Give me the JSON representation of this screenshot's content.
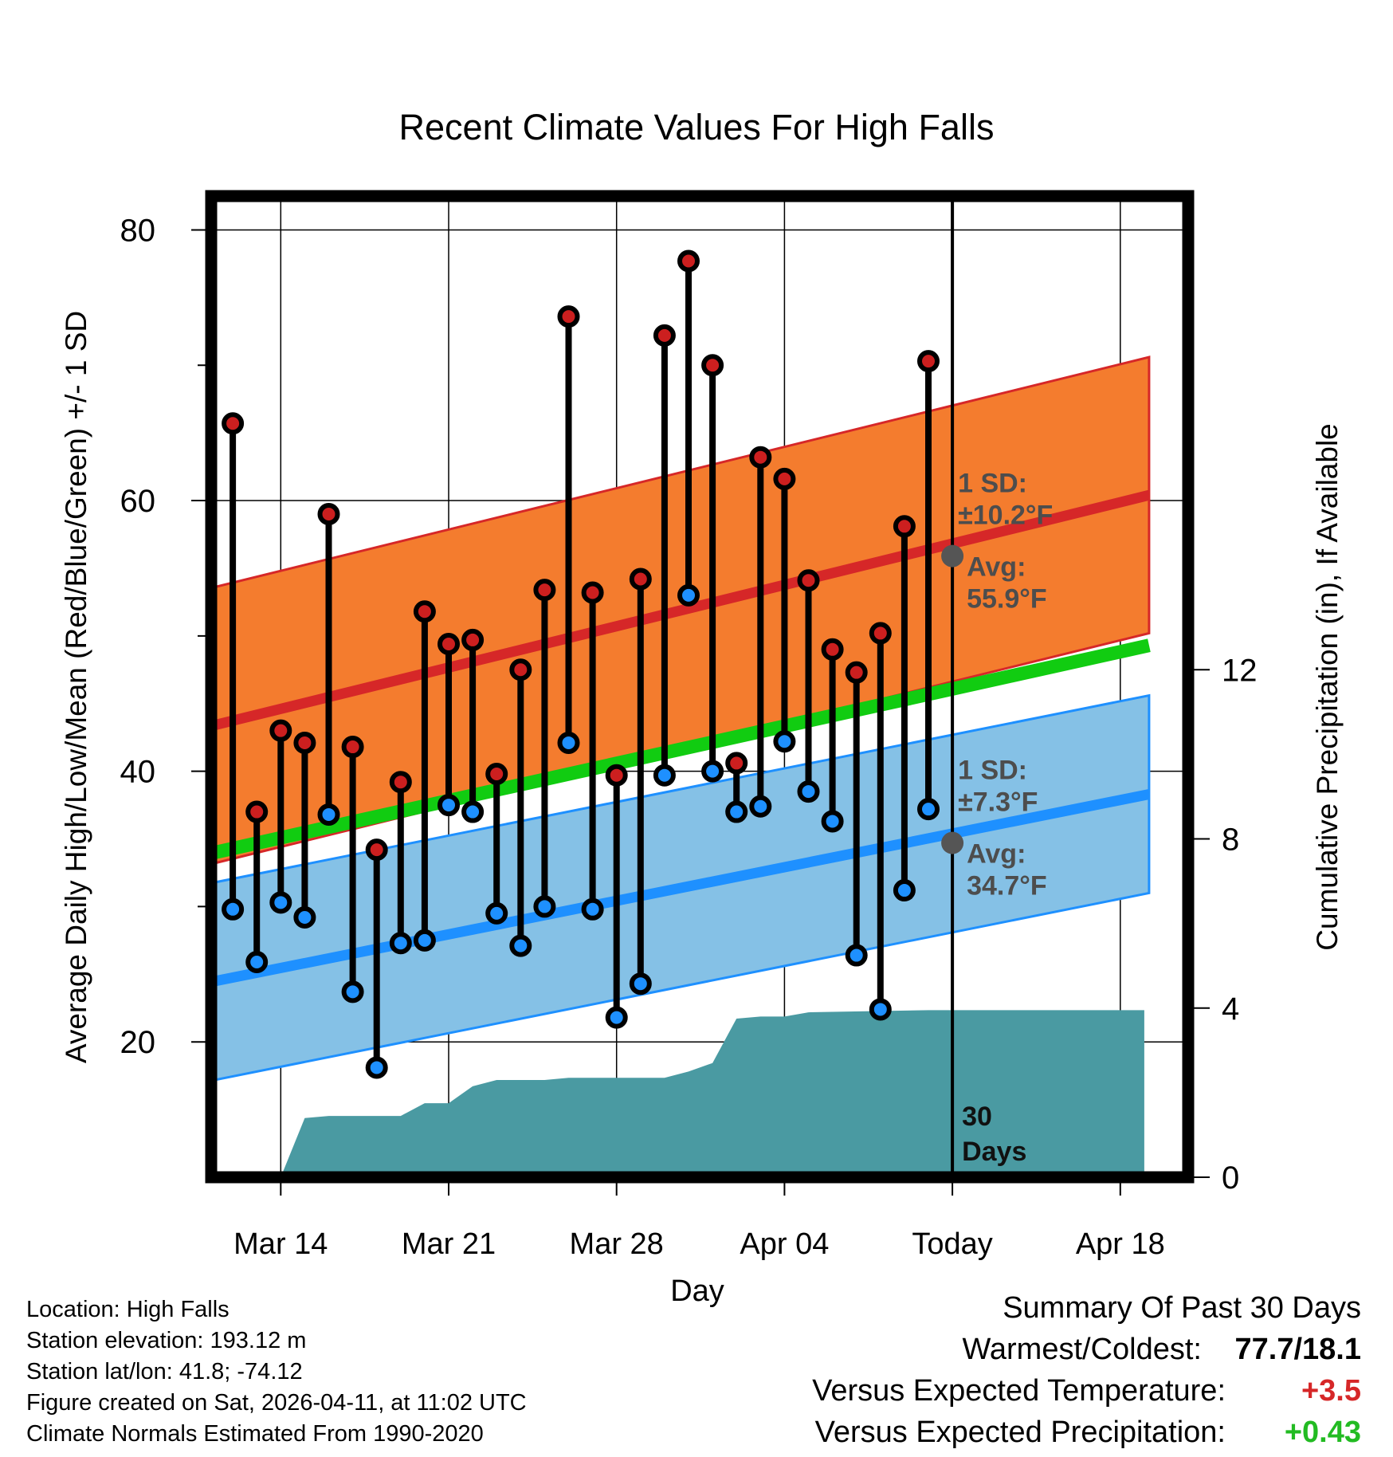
{
  "chart_data": {
    "type": "line",
    "title": "Recent Climate Values For High Falls",
    "xlabel": "Day",
    "ylabel": "Average Daily High/Low/Mean (Red/Blue/Green) +/- 1 SD",
    "ylabel_right": "Cumulative Precipitation (in), If Available",
    "ylim": [
      10,
      82.5
    ],
    "ylim_right": [
      0,
      23.2
    ],
    "y_ticks": [
      20,
      40,
      60,
      80
    ],
    "y_ticks_right": [
      0,
      4,
      8,
      12
    ],
    "x_ticks": [
      {
        "day": 3,
        "label": "Mar 14"
      },
      {
        "day": 10,
        "label": "Mar 21"
      },
      {
        "day": 17,
        "label": "Mar 28"
      },
      {
        "day": 24,
        "label": "Apr 04"
      },
      {
        "day": 31,
        "label": "Today"
      },
      {
        "day": 38,
        "label": "Apr 18"
      }
    ],
    "today_day": 31,
    "today_label_line1": "30",
    "today_label_line2": "Days",
    "normal_high": {
      "start": 43.3,
      "end": 60.4,
      "sd": 10.2
    },
    "normal_low": {
      "start": 24.4,
      "end": 38.3,
      "sd": 7.3
    },
    "normal_mean": {
      "start": 33.9,
      "end": 49.3
    },
    "high_annotation": {
      "sd_label": "1 SD:",
      "sd_value": "±10.2°F",
      "avg_label": "Avg:",
      "avg_value": "55.9°F",
      "avg": 55.9
    },
    "low_annotation": {
      "sd_label": "1 SD:",
      "sd_value": "±7.3°F",
      "avg_label": "Avg:",
      "avg_value": "34.7°F",
      "avg": 34.7
    },
    "series": [
      {
        "name": "Daily High",
        "color": "#cc1f1f",
        "values": [
          65.7,
          37.0,
          43.0,
          42.1,
          59.0,
          41.8,
          34.2,
          39.2,
          51.8,
          49.4,
          49.7,
          39.8,
          47.5,
          53.4,
          73.6,
          53.2,
          39.7,
          54.2,
          72.2,
          77.7,
          70.0,
          40.6,
          63.2,
          61.6,
          54.1,
          49.0,
          47.3,
          50.2,
          58.1,
          70.3
        ]
      },
      {
        "name": "Daily Low",
        "color": "#1e90ff",
        "values": [
          29.8,
          25.9,
          30.3,
          29.2,
          36.8,
          23.7,
          18.1,
          27.3,
          27.5,
          37.5,
          37.0,
          29.5,
          27.1,
          30.0,
          42.1,
          29.8,
          21.8,
          24.3,
          39.7,
          53.0,
          40.0,
          37.0,
          37.4,
          42.2,
          38.5,
          36.3,
          26.4,
          22.4,
          31.2,
          37.2
        ]
      }
    ],
    "precip_cumulative": {
      "days": [
        0,
        3,
        4,
        5,
        8,
        9,
        10,
        11,
        12,
        14,
        15,
        16,
        19,
        20,
        21,
        22,
        23,
        24,
        25,
        30,
        39
      ],
      "values": [
        0,
        0,
        1.4,
        1.45,
        1.45,
        1.75,
        1.75,
        2.15,
        2.3,
        2.3,
        2.35,
        2.35,
        2.35,
        2.5,
        2.7,
        3.75,
        3.8,
        3.8,
        3.9,
        3.95,
        3.95
      ]
    }
  },
  "info": {
    "location": "Location: High Falls",
    "elevation": "Station elevation: 193.12 m",
    "latlon": "Station lat/lon: 41.8; -74.12",
    "created": "Figure created on Sat, 2026-04-11, at 11:02 UTC",
    "normals": "Climate Normals Estimated From 1990-2020"
  },
  "summary": {
    "title": "Summary Of Past 30 Days",
    "warmest_label": "Warmest/Coldest:",
    "warmest_value": "77.7/18.1",
    "temp_label": "Versus Expected Temperature:",
    "temp_value": "+3.5",
    "precip_label": "Versus Expected Precipitation:",
    "precip_value": "+0.43",
    "temp_color": "#d62728",
    "precip_color": "#22bb22"
  }
}
